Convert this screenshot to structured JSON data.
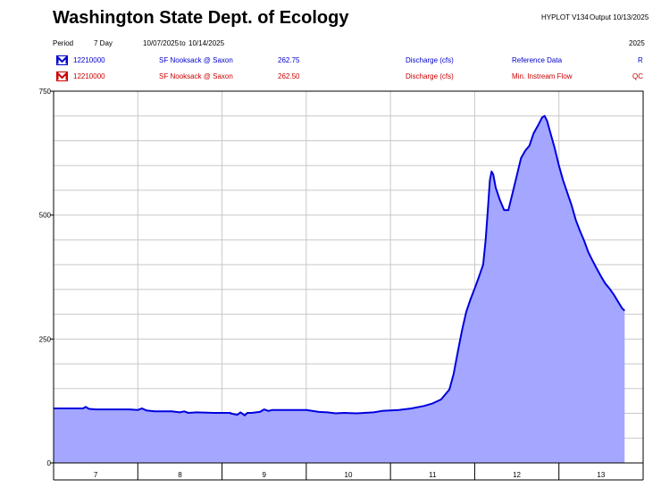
{
  "header": {
    "title": "Washington State Dept. of Ecology",
    "hyplot": "HYPLOT V134",
    "output_label": "Output 10/13/2025",
    "period_label": "Period",
    "period_value": "7 Day",
    "date_from": "10/07/2025",
    "date_to_sep": "to",
    "date_to": "10/14/2025",
    "year": "2025"
  },
  "legend": [
    {
      "id": "12210000",
      "station": "SF Nooksack @ Saxon",
      "value": "262.75",
      "param": "Discharge (cfs)",
      "dataset": "Reference Data",
      "flag": "R",
      "color": "#0000cc"
    },
    {
      "id": "12210000",
      "station": "SF Nooksack @ Saxon",
      "value": "262.50",
      "param": "Discharge (cfs)",
      "dataset": "Min. Instream Flow",
      "flag": "QC",
      "color": "#cc0000"
    }
  ],
  "colors": {
    "line": "#0000dd",
    "fill": "#a4a6ff",
    "grid": "#c8c8c8",
    "axis": "#000000"
  },
  "chart_data": {
    "type": "area",
    "ylim": [
      0,
      750
    ],
    "xlim": [
      6.5,
      13.5
    ],
    "yticks": [
      "0",
      "250",
      "500",
      "750"
    ],
    "xticks": [
      "7",
      "8",
      "9",
      "10",
      "11",
      "12",
      "13"
    ],
    "series": [
      {
        "points": [
          [
            6.5,
            110
          ],
          [
            6.85,
            110
          ],
          [
            6.88,
            113
          ],
          [
            6.92,
            109
          ],
          [
            7.0,
            108
          ],
          [
            7.2,
            108
          ],
          [
            7.4,
            108
          ],
          [
            7.5,
            107
          ],
          [
            7.55,
            110
          ],
          [
            7.6,
            106
          ],
          [
            7.7,
            104
          ],
          [
            7.9,
            104
          ],
          [
            8.0,
            102
          ],
          [
            8.05,
            104
          ],
          [
            8.1,
            101
          ],
          [
            8.2,
            102
          ],
          [
            8.4,
            101
          ],
          [
            8.6,
            101
          ],
          [
            8.6,
            100
          ],
          [
            8.68,
            97
          ],
          [
            8.72,
            102
          ],
          [
            8.77,
            96
          ],
          [
            8.8,
            101
          ],
          [
            8.85,
            101
          ],
          [
            8.95,
            103
          ],
          [
            9.0,
            108
          ],
          [
            9.05,
            105
          ],
          [
            9.1,
            107
          ],
          [
            9.3,
            107
          ],
          [
            9.5,
            107
          ],
          [
            9.65,
            103
          ],
          [
            9.75,
            102
          ],
          [
            9.85,
            100
          ],
          [
            9.95,
            101
          ],
          [
            10.1,
            100
          ],
          [
            10.3,
            102
          ],
          [
            10.4,
            105
          ],
          [
            10.6,
            107
          ],
          [
            10.75,
            110
          ],
          [
            10.9,
            115
          ],
          [
            11.0,
            120
          ],
          [
            11.1,
            128
          ],
          [
            11.2,
            148
          ],
          [
            11.25,
            180
          ],
          [
            11.3,
            225
          ],
          [
            11.35,
            268
          ],
          [
            11.4,
            305
          ],
          [
            11.45,
            330
          ],
          [
            11.5,
            352
          ],
          [
            11.55,
            375
          ],
          [
            11.6,
            400
          ],
          [
            11.63,
            450
          ],
          [
            11.66,
            520
          ],
          [
            11.68,
            570
          ],
          [
            11.7,
            588
          ],
          [
            11.72,
            582
          ],
          [
            11.75,
            555
          ],
          [
            11.8,
            530
          ],
          [
            11.85,
            510
          ],
          [
            11.9,
            510
          ],
          [
            11.95,
            545
          ],
          [
            12.0,
            580
          ],
          [
            12.05,
            615
          ],
          [
            12.1,
            630
          ],
          [
            12.15,
            640
          ],
          [
            12.2,
            665
          ],
          [
            12.25,
            680
          ],
          [
            12.3,
            697
          ],
          [
            12.33,
            700
          ],
          [
            12.36,
            690
          ],
          [
            12.4,
            665
          ],
          [
            12.45,
            635
          ],
          [
            12.5,
            600
          ],
          [
            12.55,
            570
          ],
          [
            12.6,
            545
          ],
          [
            12.65,
            520
          ],
          [
            12.7,
            490
          ],
          [
            12.75,
            468
          ],
          [
            12.8,
            448
          ],
          [
            12.85,
            425
          ],
          [
            12.9,
            408
          ],
          [
            12.95,
            392
          ],
          [
            13.0,
            376
          ],
          [
            13.05,
            362
          ],
          [
            13.1,
            352
          ],
          [
            13.15,
            340
          ],
          [
            13.2,
            326
          ],
          [
            13.25,
            312
          ],
          [
            13.28,
            307
          ]
        ]
      }
    ]
  }
}
